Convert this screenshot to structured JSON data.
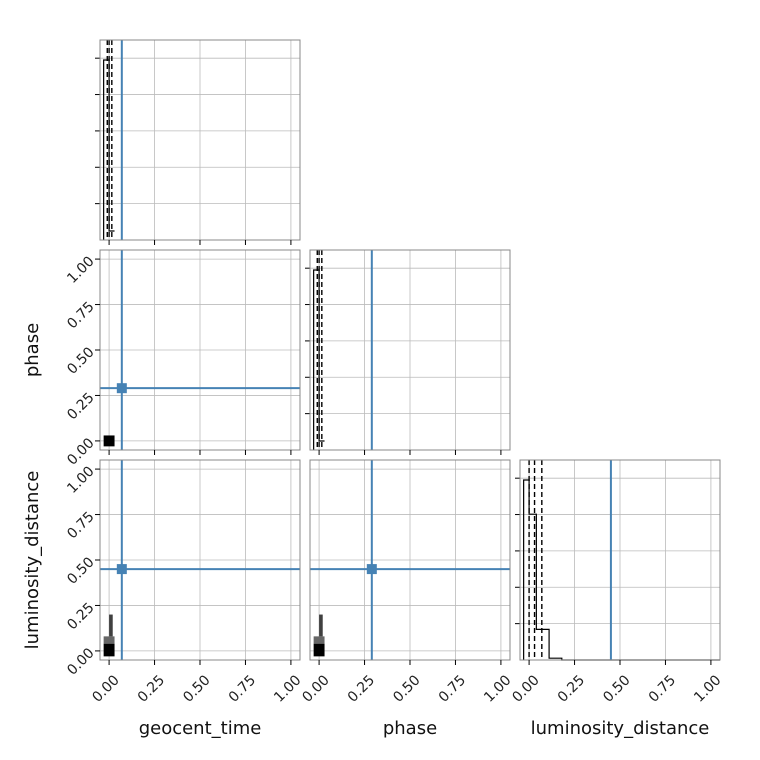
{
  "chart_data": {
    "type": "corner",
    "parameters": [
      "geocent_time",
      "phase",
      "luminosity_distance"
    ],
    "truths": [
      0.07,
      0.29,
      0.45
    ],
    "axis_range": [
      -0.05,
      1.05
    ],
    "tick_values": [
      0.0,
      0.25,
      0.5,
      0.75,
      1.0
    ],
    "tick_labels": [
      "0.00",
      "0.25",
      "0.50",
      "0.75",
      "1.00"
    ],
    "grid": true,
    "truth_color": "#4682b4",
    "histograms": [
      {
        "parameter": "geocent_time",
        "bins": [
          -0.03,
          0.0,
          0.03
        ],
        "counts": [
          1.0,
          0.05
        ],
        "quantiles": [
          -0.01,
          0.0,
          0.015
        ]
      },
      {
        "parameter": "phase",
        "bins": [
          -0.03,
          0.0,
          0.03
        ],
        "counts": [
          1.0,
          0.05
        ],
        "quantiles": [
          -0.01,
          0.0,
          0.015
        ]
      },
      {
        "parameter": "luminosity_distance",
        "bins": [
          -0.03,
          0.0,
          0.04,
          0.11,
          0.18,
          0.25,
          1.05
        ],
        "counts": [
          1.0,
          0.81,
          0.17,
          0.01,
          0.0,
          0.0
        ],
        "quantiles": [
          0.0,
          0.03,
          0.07
        ]
      }
    ],
    "density_2d": [
      {
        "x": "geocent_time",
        "y": "phase",
        "cells": [
          {
            "x0": -0.03,
            "x1": 0.03,
            "y0": -0.03,
            "y1": 0.03,
            "shade": 1.0
          }
        ]
      },
      {
        "x": "geocent_time",
        "y": "luminosity_distance",
        "cells": [
          {
            "x0": -0.03,
            "x1": 0.03,
            "y0": -0.03,
            "y1": 0.04,
            "shade": 1.0
          },
          {
            "x0": -0.03,
            "x1": 0.03,
            "y0": 0.04,
            "y1": 0.08,
            "shade": 0.6
          },
          {
            "x0": 0.0,
            "x1": 0.02,
            "y0": 0.08,
            "y1": 0.2,
            "shade": 0.75
          }
        ]
      },
      {
        "x": "phase",
        "y": "luminosity_distance",
        "cells": [
          {
            "x0": -0.03,
            "x1": 0.03,
            "y0": -0.03,
            "y1": 0.04,
            "shade": 1.0
          },
          {
            "x0": -0.03,
            "x1": 0.03,
            "y0": 0.04,
            "y1": 0.08,
            "shade": 0.6
          },
          {
            "x0": 0.0,
            "x1": 0.02,
            "y0": 0.08,
            "y1": 0.2,
            "shade": 0.75
          }
        ]
      }
    ]
  }
}
